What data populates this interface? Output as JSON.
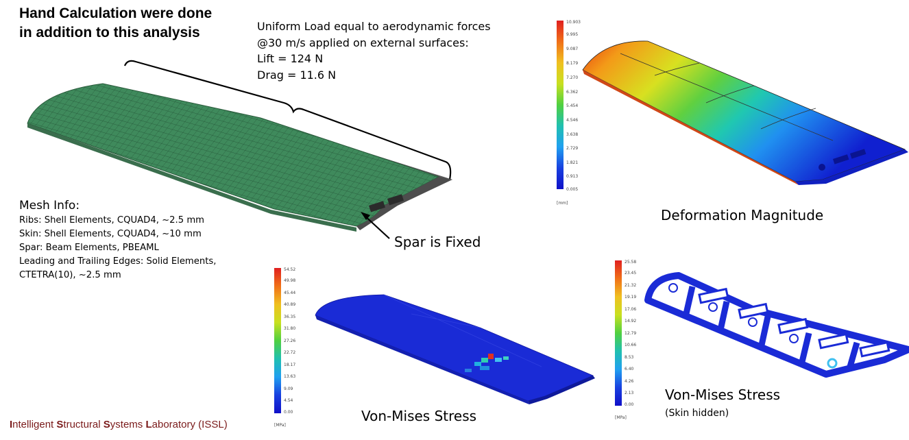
{
  "title": [
    "Hand Calculation were done",
    "in addition to this analysis"
  ],
  "load_text": [
    "Uniform Load equal to aerodynamic forces",
    "@30 m/s applied on external surfaces:",
    "Lift = 124 N",
    "Drag = 11.6 N"
  ],
  "mesh_info": {
    "heading": "Mesh Info:",
    "lines": [
      "Ribs: Shell Elements, CQUAD4, ~2.5 mm",
      "Skin: Shell Elements, CQUAD4, ~10 mm",
      "Spar: Beam Elements, PBEAML",
      "Leading and Trailing Edges: Solid Elements,",
      "CTETRA(10), ~2.5 mm"
    ]
  },
  "spar_label": "Spar is Fixed",
  "deformation": {
    "caption": "Deformation Magnitude",
    "unit": "[mm]",
    "ticks": [
      "10.903",
      "9.995",
      "9.087",
      "8.179",
      "7.270",
      "6.362",
      "5.454",
      "4.546",
      "3.638",
      "2.729",
      "1.821",
      "0.913",
      "0.005"
    ]
  },
  "stress": {
    "caption": "Von-Mises Stress",
    "unit": "[MPa]",
    "ticks": [
      "54.52",
      "49.98",
      "45.44",
      "40.89",
      "36.35",
      "31.80",
      "27.26",
      "22.72",
      "18.17",
      "13.63",
      "9.09",
      "4.54",
      "0.00"
    ]
  },
  "stress_skin": {
    "caption": "Von-Mises Stress",
    "subcaption": "(Skin hidden)",
    "unit": "[MPa]",
    "ticks": [
      "25.58",
      "23.45",
      "21.32",
      "19.19",
      "17.06",
      "14.92",
      "12.79",
      "10.66",
      "8.53",
      "6.40",
      "4.26",
      "2.13",
      "0.00"
    ]
  },
  "footer": {
    "parts": [
      {
        "text": "I",
        "bold": true
      },
      {
        "text": "ntelligent ",
        "bold": false
      },
      {
        "text": "S",
        "bold": true
      },
      {
        "text": "tructural ",
        "bold": false
      },
      {
        "text": "S",
        "bold": true
      },
      {
        "text": "ystems ",
        "bold": false
      },
      {
        "text": "L",
        "bold": true
      },
      {
        "text": "aboratory (ISSL)",
        "bold": false
      }
    ]
  },
  "colors": {
    "mesh_green": "#3f8a5c",
    "spar_gray": "#555555",
    "fem_blue": "#1a2bd6",
    "footer_red": "#7a1a1a"
  }
}
